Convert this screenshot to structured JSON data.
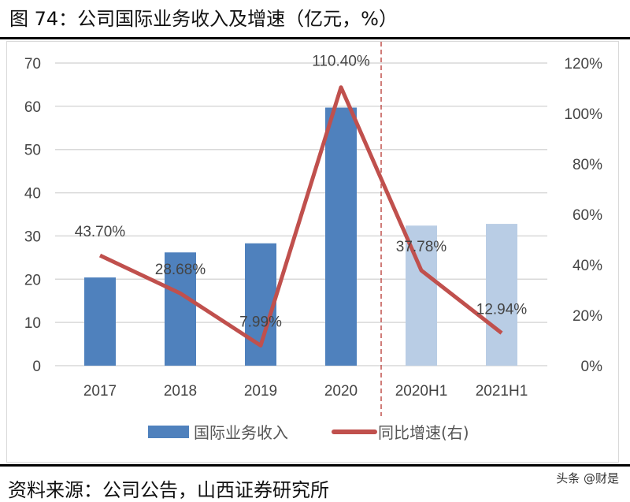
{
  "title": "图 74：公司国际业务收入及增速（亿元，%）",
  "source": "资料来源：公司公告，山西证券研究所",
  "watermark": "头条 @财是",
  "chart_data": {
    "type": "bar+line",
    "categories": [
      "2017",
      "2018",
      "2019",
      "2020",
      "2020H1",
      "2021H1"
    ],
    "series": [
      {
        "name": "国际业务收入",
        "type": "bar",
        "axis": "left",
        "values": [
          20.4,
          26.2,
          28.3,
          59.7,
          32.4,
          32.8
        ],
        "color": "#4f81bd",
        "light_color": "#b9cde5"
      },
      {
        "name": "同比增速(右)",
        "type": "line",
        "axis": "right",
        "values": [
          43.7,
          28.68,
          7.99,
          110.4,
          37.78,
          12.94
        ],
        "labels": [
          "43.70%",
          "28.68%",
          "7.99%",
          "110.40%",
          "37.78%",
          "12.94%"
        ],
        "color": "#c0504d"
      }
    ],
    "left_axis": {
      "ylim": [
        0,
        70
      ],
      "ticks": [
        "0",
        "10",
        "20",
        "30",
        "40",
        "50",
        "60",
        "70"
      ]
    },
    "right_axis": {
      "ylim": [
        0,
        120
      ],
      "ticks": [
        "0%",
        "20%",
        "40%",
        "60%",
        "80%",
        "100%",
        "120%"
      ]
    },
    "grid": true,
    "legend": "bottom",
    "divider_after": "2020"
  }
}
